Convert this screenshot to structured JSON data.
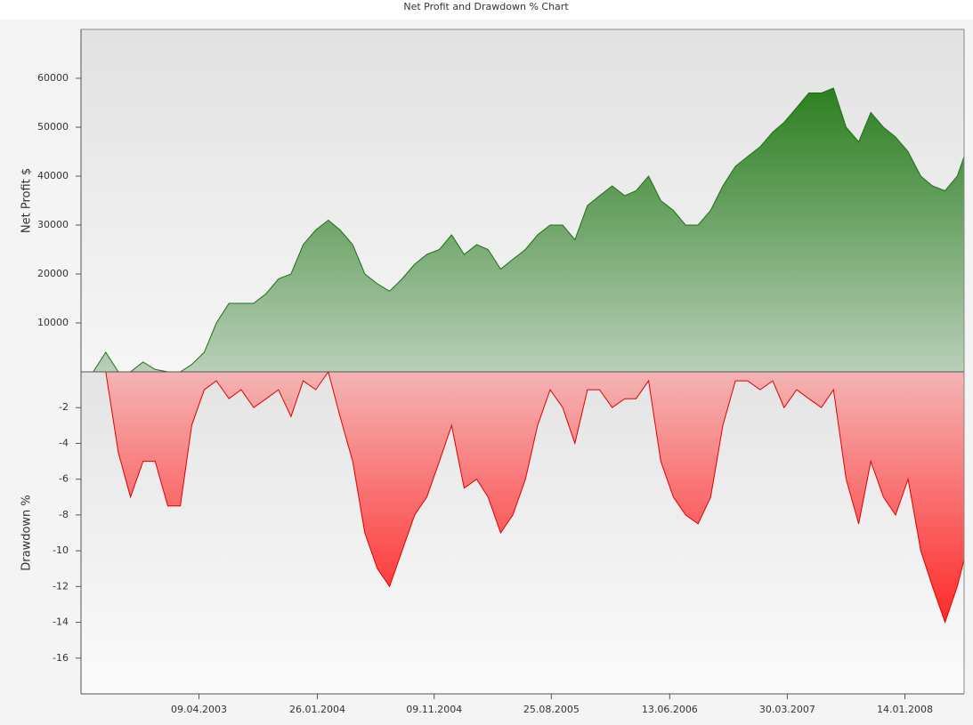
{
  "title": "Net Profit and Drawdown % Chart",
  "chart_data": [
    {
      "type": "area",
      "ylabel": "Net Profit $",
      "color": "#1f6f14",
      "xlim": [
        "22.06.2002",
        "08.06.2008"
      ],
      "ylim": [
        0,
        70000
      ],
      "yticks": [
        10000,
        20000,
        30000,
        40000,
        50000,
        60000
      ],
      "x": [
        "22.07.2002",
        "22.08.2002",
        "22.09.2002",
        "22.10.2002",
        "22.11.2002",
        "22.12.2002",
        "22.01.2003",
        "22.02.2003",
        "22.03.2003",
        "22.04.2003",
        "22.05.2003",
        "22.06.2003",
        "22.07.2003",
        "22.08.2003",
        "22.09.2003",
        "22.10.2003",
        "22.11.2003",
        "22.12.2003",
        "22.01.2004",
        "22.02.2004",
        "22.03.2004",
        "22.04.2004",
        "22.05.2004",
        "22.06.2004",
        "22.07.2004",
        "22.08.2004",
        "22.09.2004",
        "22.10.2004",
        "22.11.2004",
        "22.12.2004",
        "22.01.2005",
        "22.02.2005",
        "22.03.2005",
        "22.04.2005",
        "22.05.2005",
        "22.06.2005",
        "22.07.2005",
        "22.08.2005",
        "22.09.2005",
        "22.10.2005",
        "22.11.2005",
        "22.12.2005",
        "22.01.2006",
        "22.02.2006",
        "22.03.2006",
        "22.04.2006",
        "22.05.2006",
        "22.06.2006",
        "22.07.2006",
        "22.08.2006",
        "22.09.2006",
        "22.10.2006",
        "22.11.2006",
        "22.12.2006",
        "22.01.2007",
        "22.02.2007",
        "22.03.2007",
        "22.04.2007",
        "22.05.2007",
        "22.06.2007",
        "22.07.2007",
        "22.08.2007",
        "22.09.2007",
        "22.10.2007",
        "22.11.2007",
        "22.12.2007",
        "22.01.2008",
        "22.02.2008",
        "22.03.2008",
        "22.04.2008",
        "22.05.2008",
        "08.06.2008"
      ],
      "values": [
        0,
        4000,
        0,
        0,
        2000,
        500,
        0,
        0,
        1500,
        4000,
        10000,
        14000,
        14000,
        14000,
        16000,
        19000,
        20000,
        26000,
        29000,
        31000,
        29000,
        26000,
        20000,
        18000,
        16500,
        19000,
        22000,
        24000,
        25000,
        28000,
        24000,
        26000,
        25000,
        21000,
        23000,
        25000,
        28000,
        30000,
        30000,
        27000,
        34000,
        36000,
        38000,
        36000,
        37000,
        40000,
        35000,
        33000,
        30000,
        30000,
        33000,
        38000,
        42000,
        44000,
        46000,
        49000,
        51000,
        54000,
        57000,
        57000,
        58000,
        50000,
        47000,
        53000,
        50000,
        48000,
        45000,
        40000,
        38000,
        37000,
        40000,
        44000
      ]
    },
    {
      "type": "area",
      "ylabel": "Drawdown %",
      "color": "#e00000",
      "xlim": [
        "22.06.2002",
        "08.06.2008"
      ],
      "xticks": [
        "09.04.2003",
        "26.01.2004",
        "09.11.2004",
        "25.08.2005",
        "13.06.2006",
        "30.03.2007",
        "14.01.2008"
      ],
      "ylim": [
        -18,
        0
      ],
      "yticks": [
        -2,
        -4,
        -6,
        -8,
        -10,
        -12,
        -14,
        -16
      ],
      "x": [
        "22.07.2002",
        "22.08.2002",
        "22.09.2002",
        "22.10.2002",
        "22.11.2002",
        "22.12.2002",
        "22.01.2003",
        "22.02.2003",
        "22.03.2003",
        "22.04.2003",
        "22.05.2003",
        "22.06.2003",
        "22.07.2003",
        "22.08.2003",
        "22.09.2003",
        "22.10.2003",
        "22.11.2003",
        "22.12.2003",
        "22.01.2004",
        "22.02.2004",
        "22.03.2004",
        "22.04.2004",
        "22.05.2004",
        "22.06.2004",
        "22.07.2004",
        "22.08.2004",
        "22.09.2004",
        "22.10.2004",
        "22.11.2004",
        "22.12.2004",
        "22.01.2005",
        "22.02.2005",
        "22.03.2005",
        "22.04.2005",
        "22.05.2005",
        "22.06.2005",
        "22.07.2005",
        "22.08.2005",
        "22.09.2005",
        "22.10.2005",
        "22.11.2005",
        "22.12.2005",
        "22.01.2006",
        "22.02.2006",
        "22.03.2006",
        "22.04.2006",
        "22.05.2006",
        "22.06.2006",
        "22.07.2006",
        "22.08.2006",
        "22.09.2006",
        "22.10.2006",
        "22.11.2006",
        "22.12.2006",
        "22.01.2007",
        "22.02.2007",
        "22.03.2007",
        "22.04.2007",
        "22.05.2007",
        "22.06.2007",
        "22.07.2007",
        "22.08.2007",
        "22.09.2007",
        "22.10.2007",
        "22.11.2007",
        "22.12.2007",
        "22.01.2008",
        "22.02.2008",
        "22.03.2008",
        "22.04.2008",
        "22.05.2008",
        "08.06.2008"
      ],
      "values": [
        0,
        0,
        -4.5,
        -7,
        -5,
        -5,
        -7.5,
        -7.5,
        -3,
        -1,
        -0.5,
        -1.5,
        -1,
        -2,
        -1.5,
        -1,
        -2.5,
        -0.5,
        -1,
        0,
        -2.5,
        -5,
        -9,
        -11,
        -12,
        -10,
        -8,
        -7,
        -5,
        -3,
        -6.5,
        -6,
        -7,
        -9,
        -8,
        -6,
        -3,
        -1,
        -2,
        -4,
        -1,
        -1,
        -2,
        -1.5,
        -1.5,
        -0.5,
        -5,
        -7,
        -8,
        -8.5,
        -7,
        -3,
        -0.5,
        -0.5,
        -1,
        -0.5,
        -2,
        -1,
        -1.5,
        -2,
        -1,
        -6,
        -8.5,
        -5,
        -7,
        -8,
        -6,
        -10,
        -12,
        -14,
        -12,
        -10.5
      ]
    }
  ]
}
